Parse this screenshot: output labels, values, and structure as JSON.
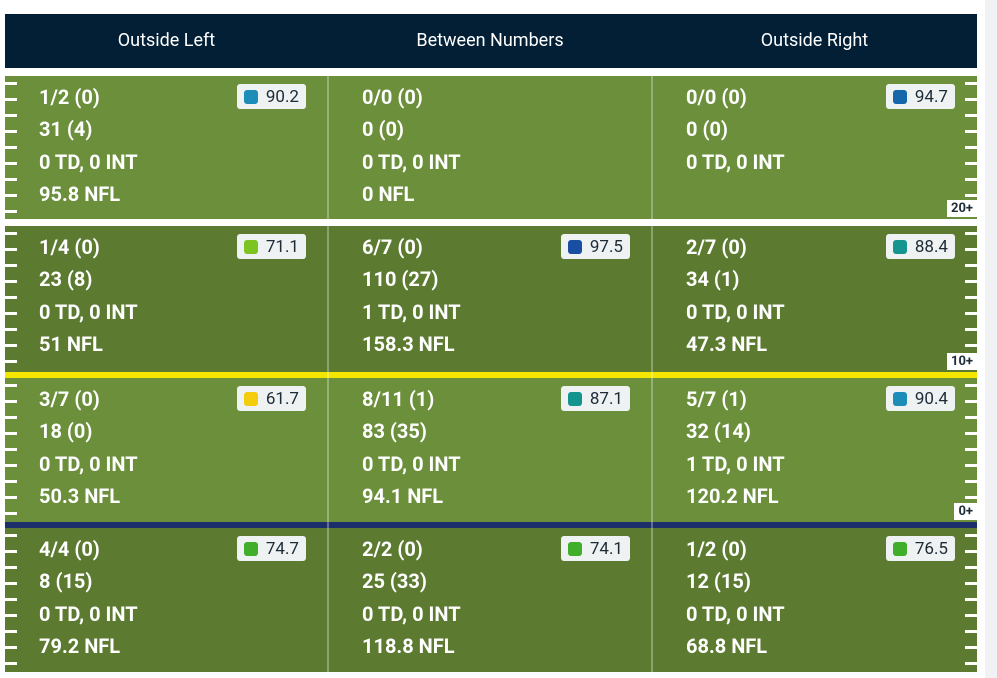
{
  "header": {
    "columns": [
      "Outside Left",
      "Between Numbers",
      "Outside Right"
    ]
  },
  "rows": [
    {
      "zone": "20+",
      "cells": [
        {
          "lines": [
            "1/2 (0)",
            "31 (4)",
            "0 TD, 0 INT",
            "95.8 NFL"
          ],
          "grade": 90.2,
          "color": "#1b8db8"
        },
        {
          "lines": [
            "0/0 (0)",
            "0 (0)",
            "0 TD, 0 INT",
            "0 NFL"
          ],
          "grade": null,
          "color": null
        },
        {
          "lines": [
            "0/0 (0)",
            "0 (0)",
            "0 TD, 0 INT"
          ],
          "grade": 94.7,
          "color": "#1566aa"
        }
      ]
    },
    {
      "zone": "10+",
      "cells": [
        {
          "lines": [
            "1/4 (0)",
            "23 (8)",
            "0 TD, 0 INT",
            "51 NFL"
          ],
          "grade": 71.1,
          "color": "#7cc41f"
        },
        {
          "lines": [
            "6/7 (0)",
            "110 (27)",
            "1 TD, 0 INT",
            "158.3 NFL"
          ],
          "grade": 97.5,
          "color": "#1a4ea2"
        },
        {
          "lines": [
            "2/7 (0)",
            "34 (1)",
            "0 TD, 0 INT",
            "47.3 NFL"
          ],
          "grade": 88.4,
          "color": "#14948f"
        }
      ]
    },
    {
      "zone": "0+",
      "cells": [
        {
          "lines": [
            "3/7 (0)",
            "18 (0)",
            "0 TD, 0 INT",
            "50.3 NFL"
          ],
          "grade": 61.7,
          "color": "#f3cd0c"
        },
        {
          "lines": [
            "8/11 (1)",
            "83 (35)",
            "0 TD, 0 INT",
            "94.1 NFL"
          ],
          "grade": 87.1,
          "color": "#14948f"
        },
        {
          "lines": [
            "5/7 (1)",
            "32 (14)",
            "1 TD, 0 INT",
            "120.2 NFL"
          ],
          "grade": 90.4,
          "color": "#1b8db8"
        }
      ]
    },
    {
      "cells": [
        {
          "lines": [
            "4/4 (0)",
            "8 (15)",
            "0 TD, 0 INT",
            "79.2 NFL"
          ],
          "grade": 74.7,
          "color": "#40ae2b"
        },
        {
          "lines": [
            "2/2 (0)",
            "25 (33)",
            "0 TD, 0 INT",
            "118.8 NFL"
          ],
          "grade": 74.1,
          "color": "#40ae2b"
        },
        {
          "lines": [
            "1/2 (0)",
            "12 (15)",
            "0 TD, 0 INT",
            "68.8 NFL"
          ],
          "grade": 76.5,
          "color": "#40ae2b"
        }
      ]
    }
  ]
}
